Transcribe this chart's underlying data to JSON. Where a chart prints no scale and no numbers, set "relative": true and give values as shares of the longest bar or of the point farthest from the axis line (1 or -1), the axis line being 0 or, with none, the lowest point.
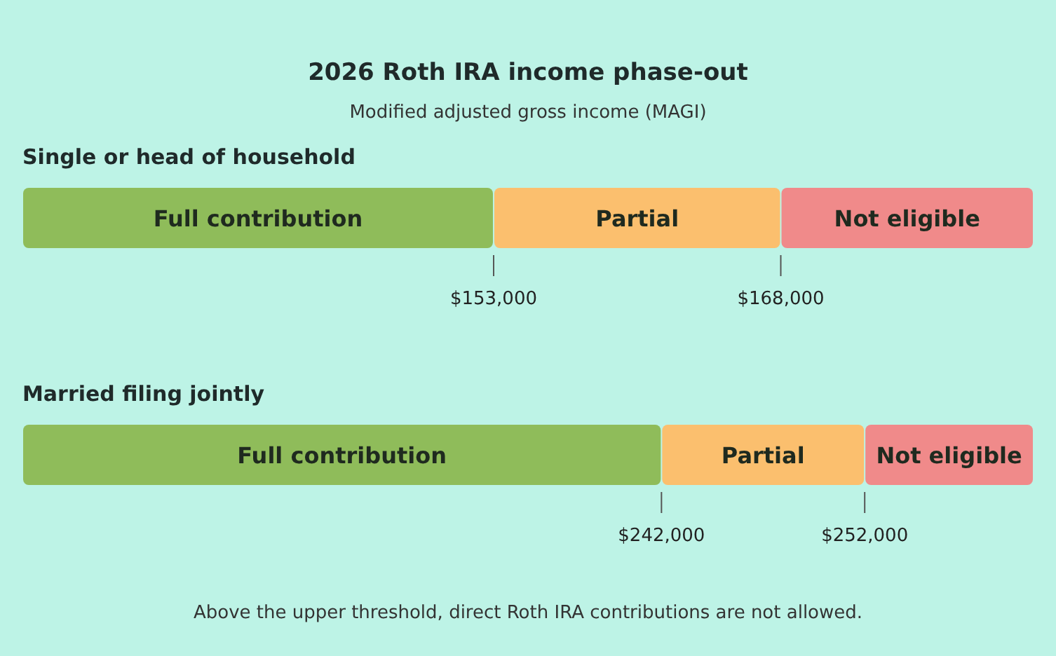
{
  "chart_data": {
    "type": "bar",
    "title": "2026 Roth IRA income phase-out",
    "subtitle": "Modified adjusted gross income (MAGI)",
    "orientation": "horizontal",
    "stacked": true,
    "relative": true,
    "categories": [
      "Single or head of household",
      "Married filing jointly"
    ],
    "series": [
      {
        "name": "Full contribution",
        "color": "#8fbc5a",
        "values": [
          0.466,
          0.632
        ]
      },
      {
        "name": "Partial",
        "color": "#fbbf6e",
        "values": [
          0.284,
          0.201
        ]
      },
      {
        "name": "Not eligible",
        "color": "#f08a8a",
        "values": [
          0.25,
          0.167
        ]
      }
    ],
    "annotations": [
      "$153,000",
      "$168,000",
      "$242,000",
      "$252,000",
      "Above the upper threshold, direct Roth IRA contributions are not allowed."
    ]
  }
}
